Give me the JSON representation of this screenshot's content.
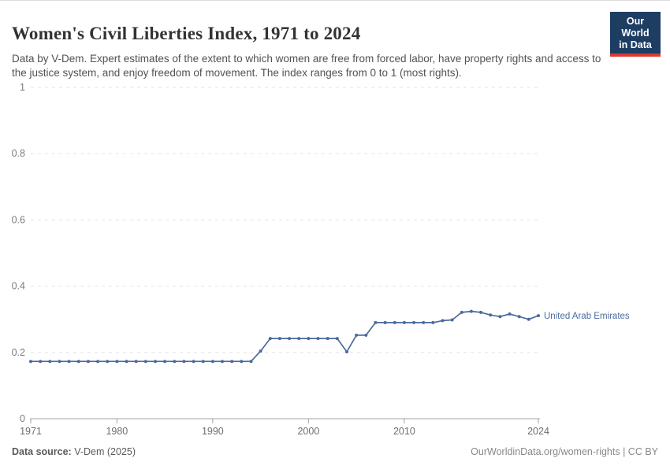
{
  "header": {
    "title": "Women's Civil Liberties Index, 1971 to 2024",
    "subtitle": "Data by V-Dem. Expert estimates of the extent to which women are free from forced labor, have property rights and access to the justice system, and enjoy freedom of movement. The index ranges from 0 to 1 (most rights).",
    "logo": {
      "line1": "Our World",
      "line2": "in Data",
      "bg_color": "#1d3d63",
      "accent_color": "#d93a34"
    }
  },
  "chart_data": {
    "type": "line",
    "title": "Women's Civil Liberties Index, 1971 to 2024",
    "xlabel": "",
    "ylabel": "",
    "xlim": [
      1971,
      2024
    ],
    "ylim": [
      0,
      1
    ],
    "xticks": [
      1971,
      1980,
      1990,
      2000,
      2010,
      2024
    ],
    "yticks": [
      0,
      0.2,
      0.4,
      0.6,
      0.8,
      1
    ],
    "grid": "horizontal-dashed",
    "legend_position": "line-end-label",
    "x": [
      1971,
      1972,
      1973,
      1974,
      1975,
      1976,
      1977,
      1978,
      1979,
      1980,
      1981,
      1982,
      1983,
      1984,
      1985,
      1986,
      1987,
      1988,
      1989,
      1990,
      1991,
      1992,
      1993,
      1994,
      1995,
      1996,
      1997,
      1998,
      1999,
      2000,
      2001,
      2002,
      2003,
      2004,
      2005,
      2006,
      2007,
      2008,
      2009,
      2010,
      2011,
      2012,
      2013,
      2014,
      2015,
      2016,
      2017,
      2018,
      2019,
      2020,
      2021,
      2022,
      2023,
      2024
    ],
    "series": [
      {
        "name": "United Arab Emirates",
        "color": "#4c6a9f",
        "values": [
          0.173,
          0.173,
          0.173,
          0.173,
          0.173,
          0.173,
          0.173,
          0.173,
          0.173,
          0.173,
          0.173,
          0.173,
          0.173,
          0.173,
          0.173,
          0.173,
          0.173,
          0.173,
          0.173,
          0.173,
          0.173,
          0.173,
          0.173,
          0.173,
          0.204,
          0.242,
          0.242,
          0.242,
          0.242,
          0.242,
          0.242,
          0.242,
          0.242,
          0.202,
          0.252,
          0.252,
          0.29,
          0.29,
          0.29,
          0.29,
          0.29,
          0.29,
          0.29,
          0.296,
          0.298,
          0.321,
          0.324,
          0.321,
          0.313,
          0.308,
          0.316,
          0.308,
          0.3,
          0.311
        ]
      }
    ]
  },
  "footer": {
    "source_label": "Data source:",
    "source_value": " V-Dem (2025)",
    "credit": "OurWorldinData.org/women-rights | CC BY"
  }
}
